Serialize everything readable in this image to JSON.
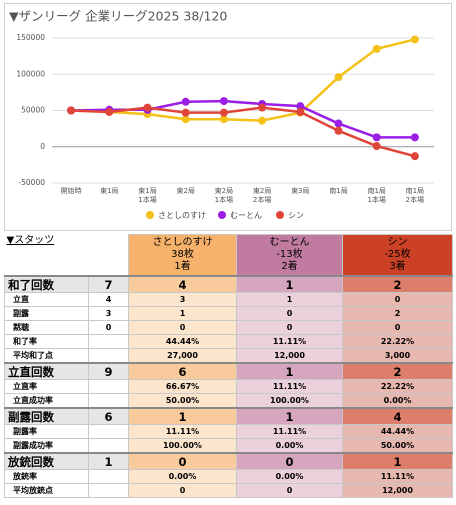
{
  "chart_data": {
    "type": "line",
    "title": "▼ザンリーグ 企業リーグ2025  38/120",
    "categories": [
      "開始時",
      "東1局",
      "東1局\n1本場",
      "東2局",
      "東2局\n1本場",
      "東2局\n2本場",
      "東3局",
      "南1局",
      "南1局\n1本場",
      "南1局\n2本場"
    ],
    "series": [
      {
        "name": "さとしのすけ",
        "color": "#f4c01a",
        "values": [
          50000,
          48000,
          45000,
          38000,
          38000,
          36000,
          47000,
          96000,
          135000,
          148000
        ]
      },
      {
        "name": "むーとん",
        "color": "#9b1ee6",
        "values": [
          50000,
          51000,
          51000,
          62000,
          63000,
          59000,
          56000,
          32000,
          13000,
          13000
        ]
      },
      {
        "name": "シン",
        "color": "#e0453a",
        "values": [
          50000,
          48000,
          54000,
          47000,
          47000,
          54000,
          48000,
          22000,
          1000,
          -13000
        ]
      }
    ],
    "ylim": [
      -50000,
      150000
    ],
    "yticks": [
      -50000,
      0,
      50000,
      100000,
      150000
    ],
    "grid": true,
    "legend": "bottom"
  },
  "table": {
    "corner": "▼スタッツ",
    "players": [
      {
        "name": "さとしのすけ",
        "score": "38枚",
        "rank": "1着",
        "header_color": "#f6b26b",
        "section_color": "#f9cb9c",
        "row_color": "#fce5cd"
      },
      {
        "name": "むーとん",
        "score": "-13枚",
        "rank": "2着",
        "header_color": "#c27ba0",
        "section_color": "#d5a6bd",
        "row_color": "#ead1dc"
      },
      {
        "name": "シン",
        "score": "-25枚",
        "rank": "3着",
        "header_color": "#cc4125",
        "section_color": "#dd7e6b",
        "row_color": "#e6b8af"
      }
    ],
    "sections": [
      {
        "label": "和了回数",
        "total": "7",
        "values": [
          "4",
          "1",
          "2"
        ],
        "rows": [
          {
            "label": "立直",
            "total": "4",
            "values": [
              "3",
              "1",
              "0"
            ]
          },
          {
            "label": "副露",
            "total": "3",
            "values": [
              "1",
              "0",
              "2"
            ]
          },
          {
            "label": "黙聴",
            "total": "0",
            "values": [
              "0",
              "0",
              "0"
            ]
          },
          {
            "label": "和了率",
            "values": [
              "44.44%",
              "11.11%",
              "22.22%"
            ]
          },
          {
            "label": "平均和了点",
            "values": [
              "27,000",
              "12,000",
              "3,000"
            ]
          }
        ]
      },
      {
        "label": "立直回数",
        "total": "9",
        "values": [
          "6",
          "1",
          "2"
        ],
        "rows": [
          {
            "label": "立直率",
            "values": [
              "66.67%",
              "11.11%",
              "22.22%"
            ]
          },
          {
            "label": "立直成功率",
            "values": [
              "50.00%",
              "100.00%",
              "0.00%"
            ]
          }
        ]
      },
      {
        "label": "副露回数",
        "total": "6",
        "values": [
          "1",
          "1",
          "4"
        ],
        "rows": [
          {
            "label": "副露率",
            "values": [
              "11.11%",
              "11.11%",
              "44.44%"
            ]
          },
          {
            "label": "副露成功率",
            "values": [
              "100.00%",
              "0.00%",
              "50.00%"
            ]
          }
        ]
      },
      {
        "label": "放銃回数",
        "total": "1",
        "values": [
          "0",
          "0",
          "1"
        ],
        "rows": [
          {
            "label": "放銃率",
            "values": [
              "0.00%",
              "0.00%",
              "11.11%"
            ]
          },
          {
            "label": "平均放銃点",
            "values": [
              "0",
              "0",
              "12,000"
            ]
          }
        ]
      }
    ]
  }
}
